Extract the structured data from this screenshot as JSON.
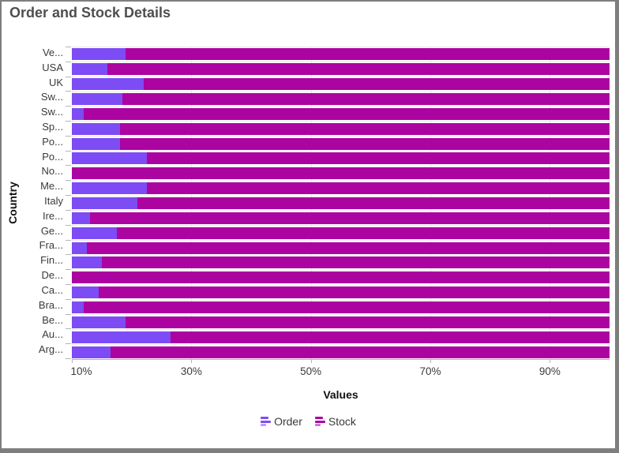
{
  "chart_data": {
    "type": "bar",
    "orientation": "horizontal",
    "stacked": true,
    "title": "Order and Stock Details",
    "xlabel": "Values",
    "ylabel": "Country",
    "legend_position": "bottom",
    "grid": true,
    "x_axis": {
      "min": 10,
      "max": 100,
      "tick_values": [
        10,
        30,
        50,
        70,
        90
      ],
      "tick_labels": [
        "10%",
        "30%",
        "50%",
        "70%",
        "90%"
      ]
    },
    "categories": [
      "Ve...",
      "USA",
      "UK",
      "Sw...",
      "Sw...",
      "Sp...",
      "Po...",
      "Po...",
      "No...",
      "Me...",
      "Italy",
      "Ire...",
      "Ge...",
      "Fra...",
      "Fin...",
      "De...",
      "Ca...",
      "Bra...",
      "Be...",
      "Au...",
      "Arg..."
    ],
    "series": [
      {
        "name": "Order",
        "color": "#7d4cf5",
        "values": [
          19,
          16,
          22,
          18.5,
          12,
          18,
          18,
          22.5,
          10,
          22.5,
          21,
          13,
          17.5,
          12.5,
          15,
          10,
          14.5,
          12,
          19,
          26.5,
          16.5
        ]
      },
      {
        "name": "Stock",
        "color": "#ac04a0",
        "values": [
          81,
          84,
          78,
          81.5,
          88,
          82,
          82,
          77.5,
          90,
          77.5,
          79,
          87,
          82.5,
          87.5,
          85,
          90,
          85.5,
          88,
          81,
          73.5,
          83.5
        ]
      }
    ]
  },
  "colors": {
    "order": "#7d4cf5",
    "stock": "#ac04a0",
    "gridline": "#e8e8e8",
    "axis_line": "#b3b3b3",
    "title_text": "#4e4e4e",
    "window_border": "#7e7e7e"
  }
}
